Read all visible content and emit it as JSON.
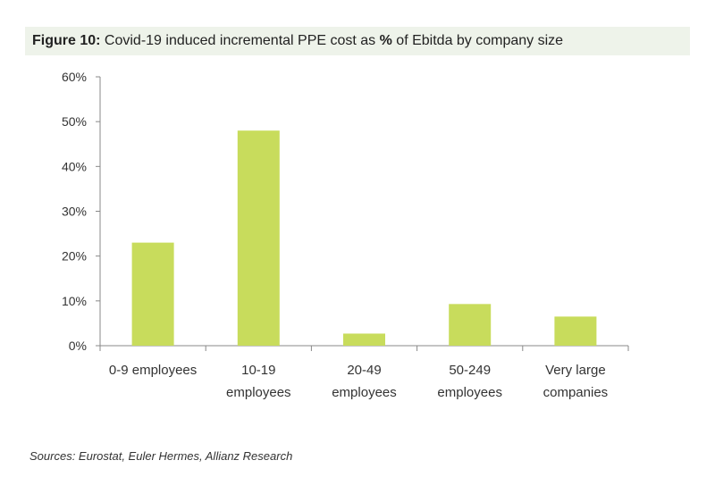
{
  "figure": {
    "label": "Figure 10:",
    "title_pre": " Covid-19 induced incremental PPE cost as ",
    "title_pct": "%",
    "title_post": " of Ebitda by company size"
  },
  "source": "Sources: Eurostat, Euler Hermes, Allianz Research",
  "colors": {
    "bar": "#c8dc5c",
    "axis": "#888888"
  },
  "chart_data": {
    "type": "bar",
    "title": "Covid-19 induced incremental PPE cost as % of Ebitda by company size",
    "xlabel": "",
    "ylabel": "",
    "ylim": [
      0,
      60
    ],
    "yticks": [
      "0%",
      "10%",
      "20%",
      "30%",
      "40%",
      "50%",
      "60%"
    ],
    "categories": [
      [
        "0-9 employees"
      ],
      [
        "10-19",
        "employees"
      ],
      [
        "20-49",
        "employees"
      ],
      [
        "50-249",
        "employees"
      ],
      [
        "Very large",
        "companies"
      ]
    ],
    "values": [
      23,
      48,
      2.7,
      9.3,
      6.5
    ],
    "grid": false,
    "legend": "none"
  }
}
